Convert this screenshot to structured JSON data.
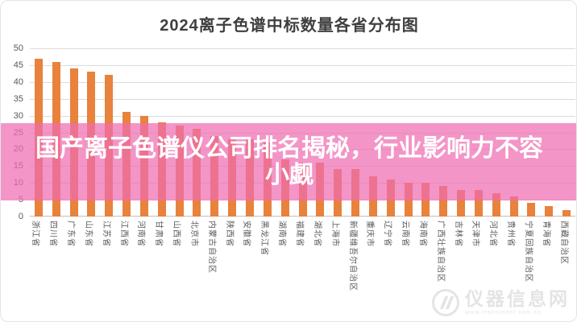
{
  "chart_data": {
    "type": "bar",
    "title": "2024离子色谱中标数量各省分布图",
    "categories": [
      "浙江省",
      "四川省",
      "广东省",
      "山东省",
      "江苏省",
      "江西省",
      "河南省",
      "甘肃省",
      "山西省",
      "北京市",
      "内蒙古自治区",
      "陕西省",
      "安徽省",
      "黑龙江省",
      "湖南省",
      "福建省",
      "湖北省",
      "上海市",
      "新疆维吾尔自治区",
      "重庆市",
      "辽宁省",
      "云南省",
      "海南省",
      "广西壮族自治区",
      "吉林省",
      "天津市",
      "河北省",
      "贵州省",
      "宁夏回族自治区",
      "青海省",
      "西藏自治区"
    ],
    "values": [
      47,
      46,
      44,
      43,
      42,
      31,
      30,
      28,
      27,
      26,
      24,
      23,
      23,
      22,
      17,
      16,
      16,
      14,
      14,
      12,
      11,
      10,
      10,
      9,
      8,
      8,
      7,
      6,
      4,
      3,
      2
    ],
    "xlabel": "",
    "ylabel": "",
    "ylim": [
      0,
      50
    ],
    "yticks": [
      0,
      5,
      10,
      15,
      20,
      25,
      30,
      35,
      40,
      45,
      50
    ],
    "grid": true,
    "legend": "none",
    "colors": {
      "bar": "#E8823C",
      "gridline": "#DBDBDB",
      "axis_line": "#BFBFBF",
      "tick_label": "#595959",
      "title": "#3F3F3F"
    }
  },
  "banner": {
    "line1": "国产离子色谱仪公司排名揭秘，行业影响力不容",
    "line2": "小觑",
    "bg_color": "#EE6CB2",
    "bg_opacity": 0.72,
    "text_color": "#FFFFFF"
  },
  "watermark": {
    "text": "仪器信息网",
    "subtext": "www.instrument.com.cn",
    "color": "#E2E2E2"
  }
}
